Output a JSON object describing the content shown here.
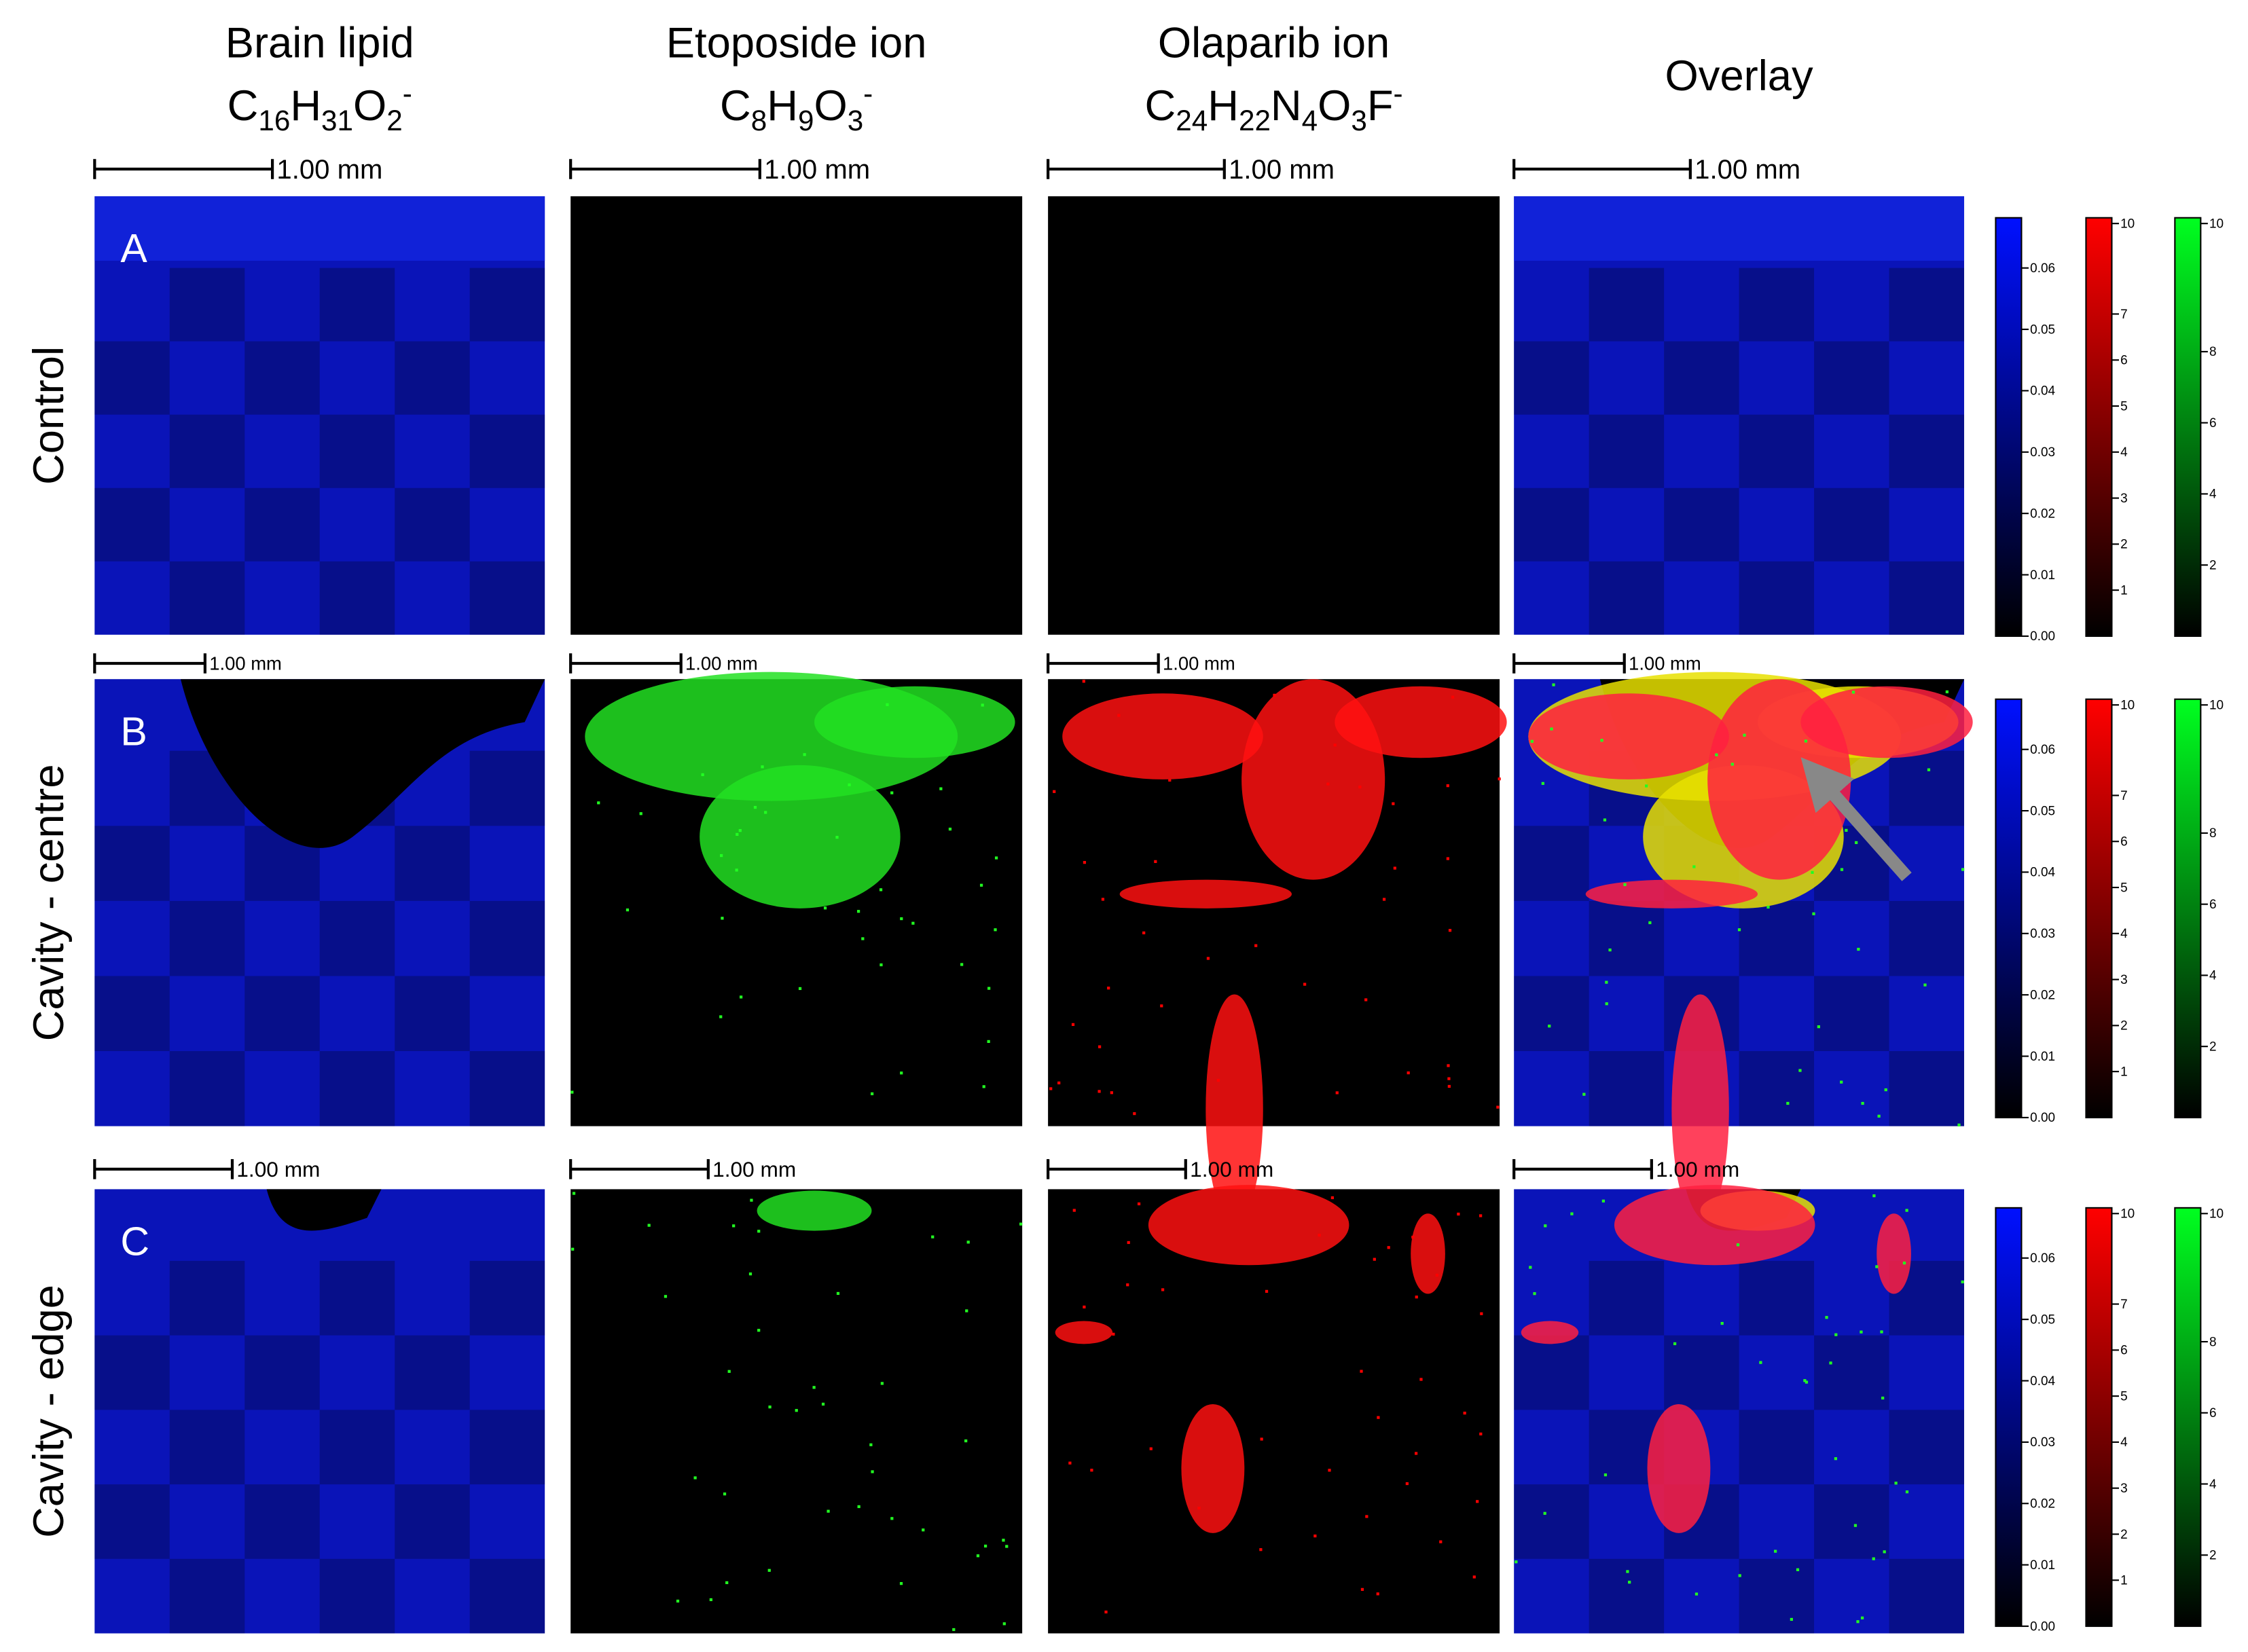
{
  "columns": [
    {
      "title": "Brain lipid",
      "formula": {
        "elements": [
          {
            "symbol": "C",
            "count": "16"
          },
          {
            "symbol": "H",
            "count": "31"
          },
          {
            "symbol": "O",
            "count": "2"
          }
        ],
        "charge": "-"
      }
    },
    {
      "title": "Etoposide ion",
      "formula": {
        "elements": [
          {
            "symbol": "C",
            "count": "8"
          },
          {
            "symbol": "H",
            "count": "9"
          },
          {
            "symbol": "O",
            "count": "3"
          }
        ],
        "charge": "-"
      }
    },
    {
      "title": "Olaparib ion",
      "formula": {
        "elements": [
          {
            "symbol": "C",
            "count": "24"
          },
          {
            "symbol": "H",
            "count": "22"
          },
          {
            "symbol": "N",
            "count": "4"
          },
          {
            "symbol": "O",
            "count": "3"
          },
          {
            "symbol": "F"
          }
        ],
        "charge": "-"
      }
    },
    {
      "title": "Overlay"
    }
  ],
  "rows": [
    {
      "label": "Control",
      "panel": "A",
      "scale_bars": [
        "1.00 mm",
        "1.00 mm",
        "1.00 mm",
        "1.00 mm"
      ]
    },
    {
      "label": "Cavity - centre",
      "panel": "B",
      "scale_bars": [
        "1.00 mm",
        "1.00 mm",
        "1.00 mm",
        "1.00 mm"
      ]
    },
    {
      "label": "Cavity - edge",
      "panel": "C",
      "scale_bars": [
        "1.00 mm",
        "1.00 mm",
        "1.00 mm",
        "1.00 mm"
      ]
    }
  ],
  "colorbars": {
    "blue": [
      "0.00",
      "0.01",
      "0.02",
      "0.03",
      "0.04",
      "0.05",
      "0.06"
    ],
    "red": [
      "1",
      "2",
      "3",
      "4",
      "5",
      "6",
      "7",
      "10"
    ],
    "green": [
      "2",
      "4",
      "6",
      "8",
      "10"
    ]
  }
}
